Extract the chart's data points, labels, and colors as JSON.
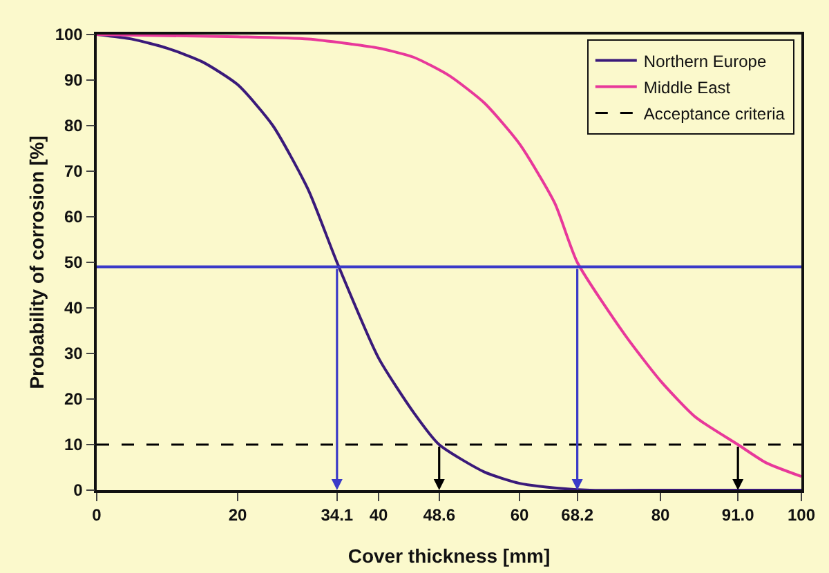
{
  "chart_data": {
    "type": "line",
    "xlabel": "Cover thickness [mm]",
    "ylabel": "Probability of corrosion [%]",
    "xlim": [
      0,
      100
    ],
    "ylim": [
      0,
      100
    ],
    "xticks": [
      0,
      20,
      34.1,
      40,
      48.6,
      60,
      68.2,
      80,
      {
        "value": 91,
        "label": "91.0"
      },
      100
    ],
    "yticks": [
      0,
      10,
      20,
      30,
      40,
      50,
      60,
      70,
      80,
      90,
      100
    ],
    "grid": false,
    "legend": "top right",
    "marker": "none",
    "line_style": "solid",
    "series": [
      {
        "name": "Northern Europe",
        "color": "#3a1a7a",
        "x": [
          0,
          5,
          10,
          15,
          20,
          25,
          30,
          34.1,
          40,
          45,
          48.6,
          55,
          60,
          65,
          70,
          80,
          90,
          100
        ],
        "values": [
          100,
          99,
          97,
          94,
          89,
          80,
          66,
          50,
          29,
          17,
          10,
          4,
          1.5,
          0.5,
          0,
          0,
          0,
          0
        ]
      },
      {
        "name": "Middle East",
        "color": "#e8389a",
        "x": [
          0,
          20,
          30,
          40,
          45,
          50,
          55,
          60,
          65,
          68.2,
          75,
          80,
          85,
          91,
          95,
          100
        ],
        "values": [
          100,
          99.5,
          99,
          97,
          95,
          91,
          85,
          76,
          63,
          50,
          34,
          24,
          16,
          10,
          6,
          3
        ]
      }
    ],
    "ref_lines": [
      {
        "axis": "y",
        "value": 49,
        "color": "#3a3ac8",
        "line_style": "solid"
      },
      {
        "axis": "y",
        "value": 10,
        "color": "#000000",
        "line_style": "dashed",
        "label": "Acceptance criteria"
      },
      {
        "axis": "x",
        "value": 34.1,
        "color": "#3a3ac8"
      },
      {
        "axis": "x",
        "value": 68.2,
        "color": "#3a3ac8"
      },
      {
        "axis": "x",
        "value": 48.6,
        "color": "#000000"
      },
      {
        "axis": "x",
        "value": 91,
        "color": "#000000"
      }
    ]
  }
}
